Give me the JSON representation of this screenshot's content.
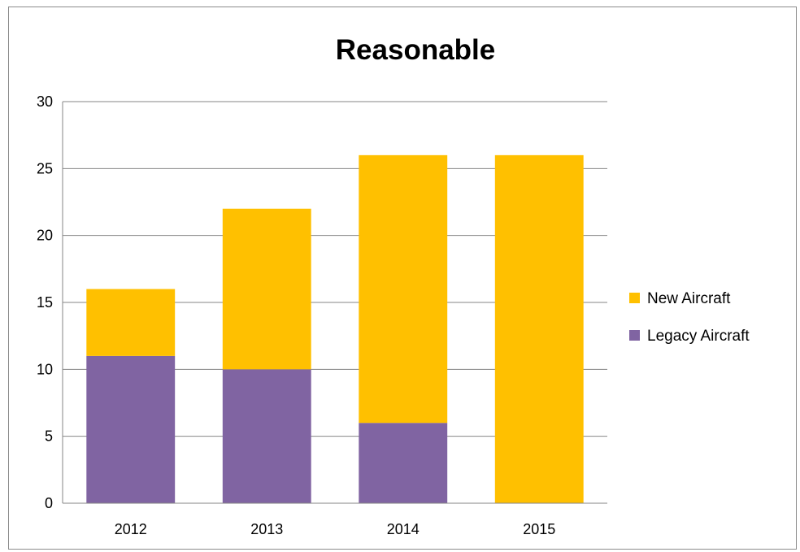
{
  "chart_data": {
    "type": "bar",
    "stacked": true,
    "title": "Reasonable",
    "xlabel": "",
    "ylabel": "",
    "categories": [
      "2012",
      "2013",
      "2014",
      "2015"
    ],
    "series": [
      {
        "name": "Legacy Aircraft",
        "values": [
          11,
          10,
          6,
          0
        ],
        "color": "#8064a2"
      },
      {
        "name": "New Aircraft",
        "values": [
          5,
          12,
          20,
          26
        ],
        "color": "#ffc000"
      }
    ],
    "ylim": [
      0,
      30
    ],
    "yticks": [
      "0",
      "5",
      "10",
      "15",
      "20",
      "25",
      "30"
    ],
    "grid": true,
    "legend_position": "right",
    "legend_order": [
      "New Aircraft",
      "Legacy Aircraft"
    ]
  }
}
